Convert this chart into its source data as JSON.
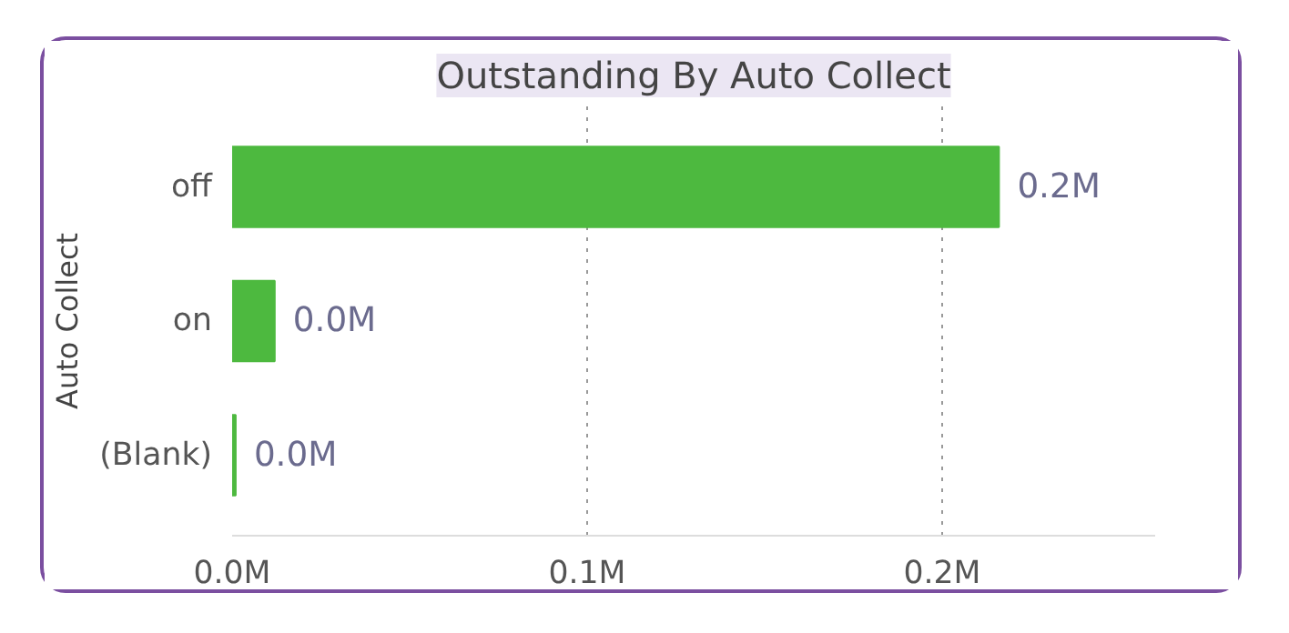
{
  "chart_data": {
    "type": "bar",
    "orientation": "horizontal",
    "title": "Outstanding By Auto Collect",
    "ylabel": "Auto Collect",
    "categories": [
      "off",
      "on",
      "(Blank)"
    ],
    "values": [
      0.216,
      0.012,
      0.001
    ],
    "value_labels": [
      "0.2M",
      "0.0M",
      "0.0M"
    ],
    "color": "#4db93f",
    "xlim": [
      0,
      0.26
    ],
    "xticks": [
      {
        "value": 0,
        "label": "0.0M"
      },
      {
        "value": 0.1,
        "label": "0.1M"
      },
      {
        "value": 0.2,
        "label": "0.2M"
      }
    ],
    "grid": "x"
  }
}
